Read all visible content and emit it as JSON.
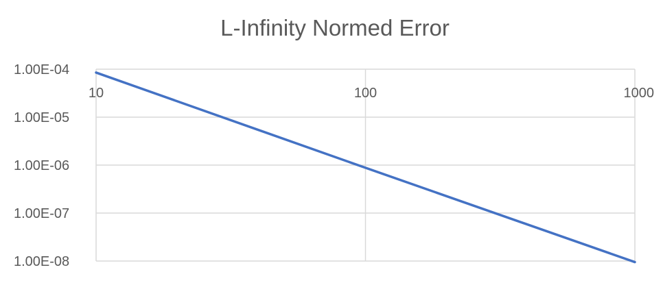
{
  "chart_data": {
    "type": "line",
    "title": "L-Infinity Normed Error",
    "xlabel": "",
    "ylabel": "",
    "x_scale": "log",
    "y_scale": "log",
    "xlim": [
      10,
      1000
    ],
    "ylim": [
      1e-08,
      0.0001
    ],
    "x_ticks": [
      {
        "value": 10,
        "label": "10"
      },
      {
        "value": 100,
        "label": "100"
      },
      {
        "value": 1000,
        "label": "1000"
      }
    ],
    "y_ticks": [
      {
        "value": 0.0001,
        "label": "1.00E-04"
      },
      {
        "value": 1e-05,
        "label": "1.00E-05"
      },
      {
        "value": 1e-06,
        "label": "1.00E-06"
      },
      {
        "value": 1e-07,
        "label": "1.00E-07"
      },
      {
        "value": 1e-08,
        "label": "1.00E-08"
      }
    ],
    "x_axis_crosses_at": 0.0001,
    "grid": true,
    "legend": "none",
    "series": [
      {
        "color": "#4472c4",
        "x": [
          10,
          100,
          1000
        ],
        "y": [
          8.5e-05,
          8.8e-07,
          9.5e-09
        ]
      }
    ]
  }
}
